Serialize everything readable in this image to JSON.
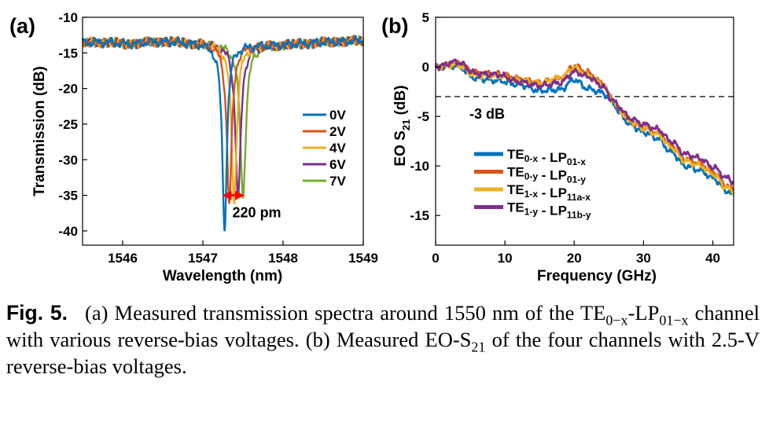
{
  "chart_data": [
    {
      "panel_label": "(a)",
      "type": "line",
      "xlabel": "Wavelength (nm)",
      "ylabel": "Transmission (dB)",
      "xlim": [
        1545.5,
        1549
      ],
      "ylim": [
        -42,
        -10
      ],
      "xticks": [
        "1546",
        "1547",
        "1548",
        "1549"
      ],
      "yticks": [
        "-10",
        "-15",
        "-20",
        "-25",
        "-30",
        "-35",
        "-40"
      ],
      "legend_position": "right",
      "grid": false,
      "baseline_db": -13.6,
      "series": [
        {
          "name": "0V",
          "color": "#0072bd",
          "notch_center_nm": 1547.27,
          "notch_min_db": -39.3,
          "notch_width_nm": 0.07
        },
        {
          "name": "2V",
          "color": "#d95319",
          "notch_center_nm": 1547.33,
          "notch_min_db": -36.0,
          "notch_width_nm": 0.075
        },
        {
          "name": "4V",
          "color": "#edb120",
          "notch_center_nm": 1547.39,
          "notch_min_db": -35.5,
          "notch_width_nm": 0.078
        },
        {
          "name": "6V",
          "color": "#7e2f8e",
          "notch_center_nm": 1547.44,
          "notch_min_db": -35.2,
          "notch_width_nm": 0.08
        },
        {
          "name": "7V",
          "color": "#77ac30",
          "notch_center_nm": 1547.5,
          "notch_min_db": -35.0,
          "notch_width_nm": 0.083
        }
      ],
      "annotation": {
        "text": "220 pm",
        "x_from": 1547.27,
        "x_to": 1547.49,
        "y": -35,
        "color": "#ff0000"
      }
    },
    {
      "panel_label": "(b)",
      "type": "line",
      "xlabel": "Frequency (GHz)",
      "ylabel": "EO S",
      "ylabel_sub": "21",
      "ylabel_suffix": " (dB)",
      "xlim": [
        0,
        43
      ],
      "ylim": [
        -18,
        5
      ],
      "xticks": [
        "0",
        "10",
        "20",
        "30",
        "40"
      ],
      "yticks": [
        "5",
        "0",
        "-5",
        "-10",
        "-15"
      ],
      "legend_position": "bottom-left",
      "grid": false,
      "reference_line": {
        "y": -3,
        "label": "-3 dB",
        "style": "dashed"
      },
      "series": [
        {
          "name": "TE0-x - LP01-x",
          "color": "#0072bd",
          "x": [
            0,
            3,
            6,
            9,
            12,
            15,
            18,
            20,
            22,
            24,
            25.5,
            26.5,
            28,
            30,
            32,
            34,
            36,
            38,
            40,
            42,
            43
          ],
          "y": [
            0,
            0.1,
            -1.2,
            -1.4,
            -1.8,
            -2.4,
            -2.3,
            -1.3,
            -2.2,
            -2.6,
            -3.5,
            -4.6,
            -5.8,
            -6.6,
            -7.2,
            -8.6,
            -10.0,
            -10.4,
            -11.2,
            -12.5,
            -13.0
          ]
        },
        {
          "name": "TE0-y - LP01-y",
          "color": "#d95319",
          "x": [
            0,
            3,
            6,
            9,
            12,
            15,
            18,
            20,
            22,
            24,
            25.5,
            26.5,
            28,
            30,
            32,
            34,
            36,
            38,
            40,
            42,
            43
          ],
          "y": [
            0,
            0.3,
            -0.6,
            -0.7,
            -1.2,
            -1.6,
            -1.2,
            0.1,
            -0.6,
            -1.6,
            -3.2,
            -4.3,
            -5.4,
            -6.1,
            -6.6,
            -7.9,
            -9.3,
            -9.7,
            -10.6,
            -12.0,
            -12.4
          ]
        },
        {
          "name": "TE1-x - LP11a-x",
          "color": "#edb120",
          "x": [
            0,
            3,
            6,
            9,
            12,
            15,
            18,
            20,
            22,
            24,
            25.5,
            26.5,
            28,
            30,
            32,
            34,
            36,
            38,
            40,
            42,
            43
          ],
          "y": [
            0,
            0.2,
            -0.9,
            -0.9,
            -1.3,
            -1.6,
            -1.1,
            -0.1,
            -0.8,
            -1.7,
            -3.3,
            -4.4,
            -5.5,
            -6.2,
            -6.8,
            -8.1,
            -9.5,
            -9.9,
            -10.8,
            -12.2,
            -12.6
          ]
        },
        {
          "name": "TE1-y - LP11b-y",
          "color": "#7e2f8e",
          "x": [
            0,
            3,
            6,
            9,
            12,
            15,
            18,
            20,
            22,
            24,
            25.5,
            26.5,
            28,
            30,
            32,
            34,
            36,
            38,
            40,
            42,
            43
          ],
          "y": [
            0,
            0.5,
            -0.7,
            -0.8,
            -1.5,
            -1.9,
            -1.6,
            -0.5,
            -1.0,
            -1.9,
            -3.3,
            -4.1,
            -5.2,
            -5.8,
            -6.3,
            -7.5,
            -8.8,
            -9.2,
            -10.1,
            -11.2,
            -11.6
          ]
        }
      ]
    }
  ],
  "caption": {
    "label": "Fig. 5.",
    "parts": [
      {
        "t": "(a) Measured transmission spectra around 1550 nm of the TE"
      },
      {
        "t": "0−x",
        "sub": true
      },
      {
        "t": "-LP"
      },
      {
        "t": "01−x",
        "sub": true
      },
      {
        "t": " channel with various reverse-bias voltages. (b) Measured EO-S"
      },
      {
        "t": "21",
        "sub": true
      },
      {
        "t": " of the four channels with 2.5-V reverse-bias voltages."
      }
    ]
  }
}
